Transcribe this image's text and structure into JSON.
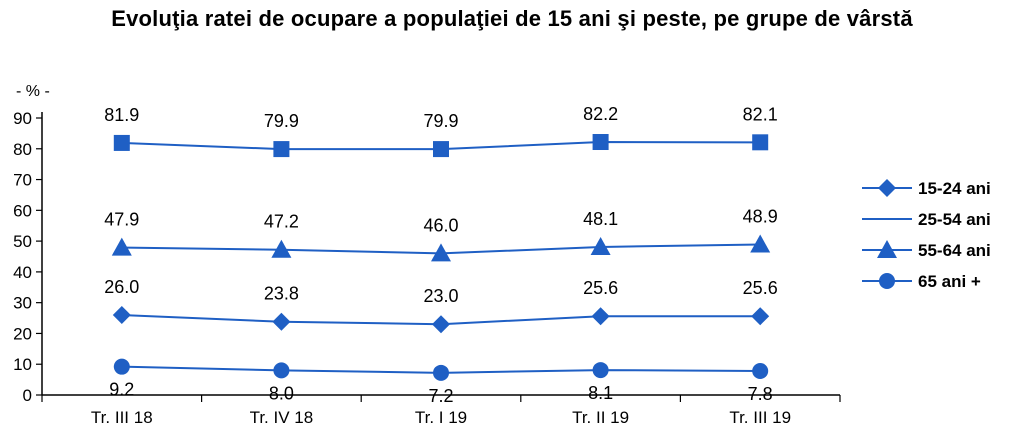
{
  "chart_data": {
    "type": "line",
    "title": "Evoluţia ratei de ocupare a populaţiei de 15 ani şi peste, pe grupe de vârstă",
    "ylabel": "- % -",
    "xlabel": "",
    "ylim": [
      0,
      90
    ],
    "yticks": [
      0,
      10,
      20,
      30,
      40,
      50,
      60,
      70,
      80,
      90
    ],
    "categories": [
      "Tr. III 18",
      "Tr. IV 18",
      "Tr. I 19",
      "Tr. II 19",
      "Tr. III 19"
    ],
    "grid": false,
    "legend_position": "right",
    "series": [
      {
        "name": "15-24 ani",
        "marker": "diamond",
        "values": [
          26.0,
          23.8,
          23.0,
          25.6,
          25.6
        ],
        "labels": [
          "26.0",
          "23.8",
          "23.0",
          "25.6",
          "25.6"
        ],
        "label_position": "above"
      },
      {
        "name": "25-54 ani",
        "marker": "square",
        "values": [
          81.9,
          79.9,
          79.9,
          82.2,
          82.1
        ],
        "labels": [
          "81.9",
          "79.9",
          "79.9",
          "82.2",
          "82.1"
        ],
        "label_position": "above"
      },
      {
        "name": "55-64 ani",
        "marker": "triangle",
        "values": [
          47.9,
          47.2,
          46.0,
          48.1,
          48.9
        ],
        "labels": [
          "47.9",
          "47.2",
          "46.0",
          "48.1",
          "48.9"
        ],
        "label_position": "above"
      },
      {
        "name": "65 ani +",
        "marker": "circle",
        "values": [
          9.2,
          8.0,
          7.2,
          8.1,
          7.8
        ],
        "labels": [
          "9.2",
          "8.0",
          "7.2",
          "8.1",
          "7.8"
        ],
        "label_position": "below"
      }
    ],
    "legend_order": [
      "15-24 ani",
      "25-54 ani",
      "55-64 ani",
      "65 ani +"
    ],
    "legend_markers": [
      "diamond",
      "none",
      "triangle",
      "circle"
    ],
    "colors": {
      "series": "#1F5FC4",
      "axis": "#000000",
      "text": "#000000"
    }
  }
}
